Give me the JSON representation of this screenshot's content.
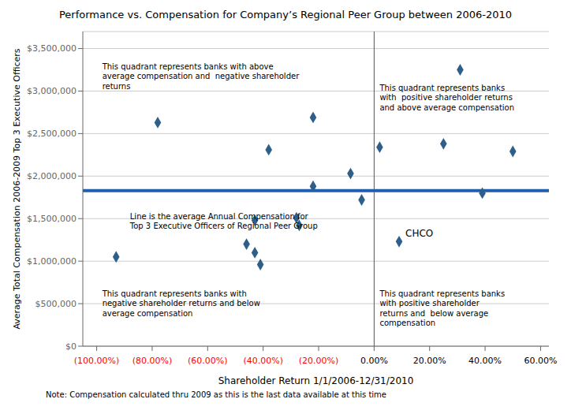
{
  "chart_data": {
    "type": "scatter",
    "title": "Performance vs. Compensation for Company’s Regional Peer Group between 2006-2010",
    "xlabel": "Shareholder Return 1/1/2006-12/31/2010",
    "ylabel": "Average Total Compensation 2006-2009 Top 3 Executive Officers",
    "note": "Note: Compensation calculated thru 2009 as this is the last data available at this time",
    "x": [
      -0.93,
      -0.78,
      -0.46,
      -0.43,
      -0.43,
      -0.41,
      -0.38,
      -0.28,
      -0.27,
      -0.22,
      -0.22,
      -0.085,
      -0.045,
      0.02,
      0.09,
      0.25,
      0.31,
      0.39,
      0.5
    ],
    "values": [
      1050000,
      2630000,
      1200000,
      1100000,
      1480000,
      960000,
      2310000,
      1510000,
      1420000,
      1880000,
      2690000,
      2030000,
      1720000,
      2340000,
      1230000,
      2380000,
      3250000,
      1800000,
      2290000
    ],
    "color": "#2E5F8A",
    "marker": "diamond",
    "xlim": [
      -1.05,
      0.63
    ],
    "ylim": [
      0,
      3700000
    ],
    "xticks": [
      {
        "value": -1.0,
        "label": "(100.00%)",
        "color": "#FF0000"
      },
      {
        "value": -0.8,
        "label": "(80.00%)",
        "color": "#FF0000"
      },
      {
        "value": -0.6,
        "label": "(60.00%)",
        "color": "#FF0000"
      },
      {
        "value": -0.4,
        "label": "(40.00%)",
        "color": "#FF0000"
      },
      {
        "value": -0.2,
        "label": "(20.00%)",
        "color": "#FF0000"
      },
      {
        "value": 0.0,
        "label": "0.00%",
        "color": "#000000"
      },
      {
        "value": 0.2,
        "label": "20.00%",
        "color": "#000000"
      },
      {
        "value": 0.4,
        "label": "40.00%",
        "color": "#000000"
      },
      {
        "value": 0.6,
        "label": "60.00%",
        "color": "#000000"
      }
    ],
    "yticks": [
      {
        "value": 0,
        "label": "$0"
      },
      {
        "value": 500000,
        "label": "$500,000"
      },
      {
        "value": 1000000,
        "label": "$1,000,000"
      },
      {
        "value": 1500000,
        "label": "$1,500,000"
      },
      {
        "value": 2000000,
        "label": "$2,000,000"
      },
      {
        "value": 2500000,
        "label": "$2,500,000"
      },
      {
        "value": 3000000,
        "label": "$3,000,000"
      },
      {
        "value": 3500000,
        "label": "$3,500,000"
      }
    ],
    "grid": "y",
    "hlines": [
      {
        "y": 1830000,
        "color": "#1F5FAD"
      }
    ],
    "vlines": [
      {
        "x": 0.0,
        "color": "#555555"
      }
    ],
    "annotations": [
      {
        "text": "This quadrant represents banks with above\naverage compensation and  negative shareholder\nreturns",
        "x": -0.98,
        "y": 3350000
      },
      {
        "text": "This quadrant represents banks\nwith  positive shareholder returns\nand above average compensation",
        "x": 0.02,
        "y": 3100000
      },
      {
        "text": "This quadrant represents banks with\nnegative shareholder returns and below\naverage compensation",
        "x": -0.98,
        "y": 680000
      },
      {
        "text": "This quadrant represents banks\nwith positive shareholder\nreturns and  below average\ncompensation",
        "x": 0.02,
        "y": 680000
      },
      {
        "text": "Line is the average Annual Compensation for\nTop 3 Executive Officers of Regional Peer Group",
        "x": -0.88,
        "y": 1590000
      }
    ],
    "point_labels": [
      {
        "text": "CHCO",
        "x": 0.09,
        "y": 1230000
      }
    ]
  }
}
